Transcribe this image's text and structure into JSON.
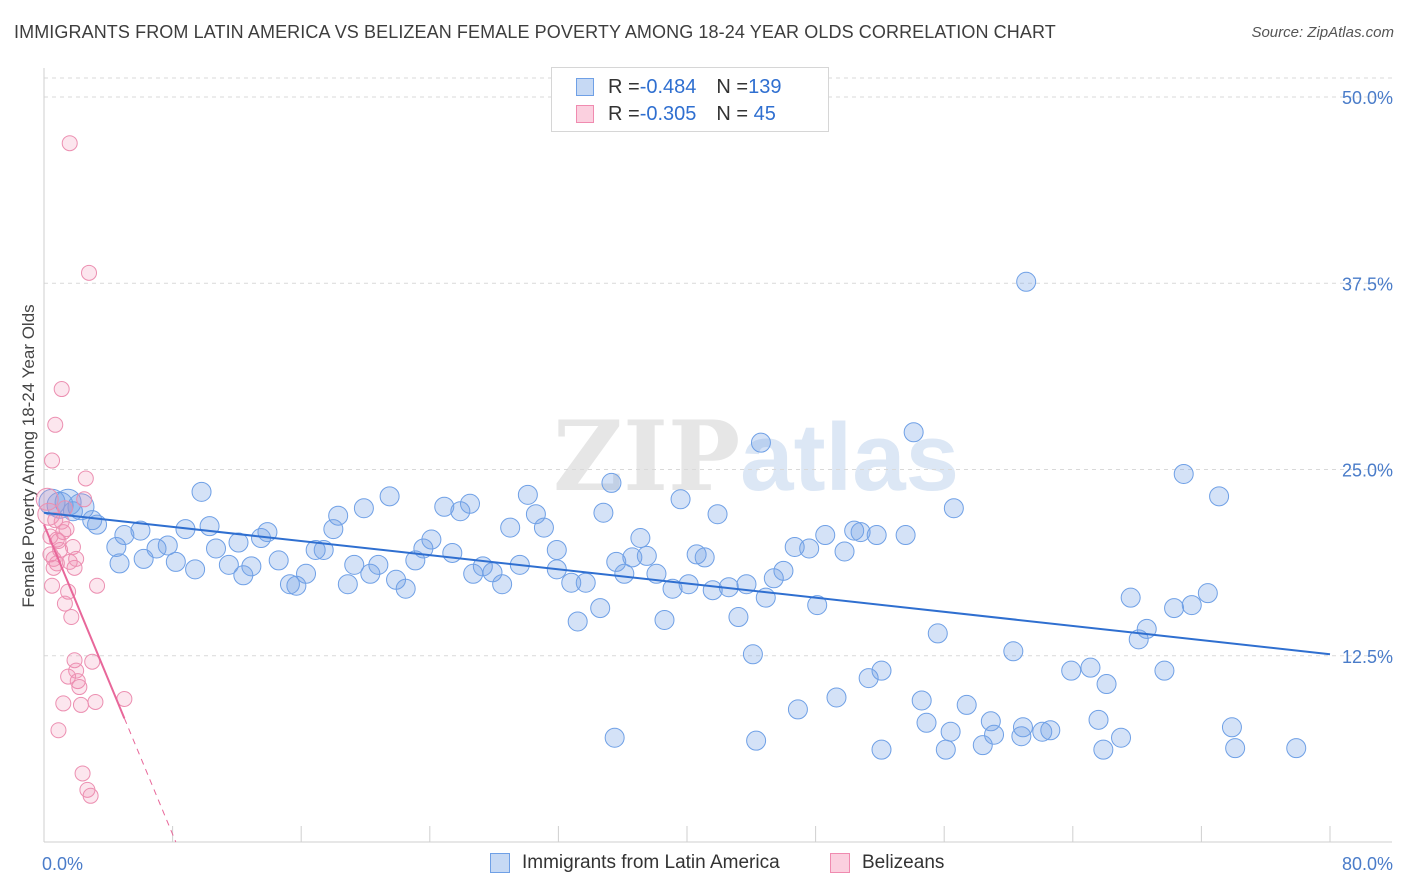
{
  "title": "IMMIGRANTS FROM LATIN AMERICA VS BELIZEAN FEMALE POVERTY AMONG 18-24 YEAR OLDS CORRELATION CHART",
  "source": "Source: ZipAtlas.com",
  "watermark": {
    "zip": "ZIP",
    "atlas": "atlas"
  },
  "legend": {
    "rows": [
      {
        "r_label": "R = ",
        "r_value": "-0.484",
        "n_label": "N = ",
        "n_value": "139",
        "color": "#6fa0e6"
      },
      {
        "r_label": "R = ",
        "r_value": "-0.305",
        "n_label": "N = ",
        "n_value": " 45",
        "color": "#f08bb0"
      }
    ]
  },
  "bottom_legend": {
    "series1": "Immigrants from Latin America",
    "series2": "Belizeans"
  },
  "chart_data": {
    "type": "scatter",
    "xlabel": "",
    "ylabel": "Female Poverty Among 18-24 Year Olds",
    "xlim": [
      0,
      80
    ],
    "ylim": [
      0,
      50
    ],
    "x_tick_labels": [
      {
        "value": 0,
        "label": "0.0%"
      },
      {
        "value": 80,
        "label": "80.0%"
      }
    ],
    "y_ticks": [
      {
        "value": 12.5,
        "label": "12.5%"
      },
      {
        "value": 25,
        "label": "25.0%"
      },
      {
        "value": 37.5,
        "label": "37.5%"
      },
      {
        "value": 50,
        "label": "50.0%"
      }
    ],
    "x_minor_ticks": [
      8,
      16,
      24,
      32,
      40,
      48,
      56,
      64,
      72,
      80
    ],
    "grid": true,
    "series": [
      {
        "name": "Immigrants from Latin America",
        "color": "#6fa0e6",
        "trend": {
          "x": [
            0,
            80
          ],
          "y": [
            22.1,
            12.6
          ]
        },
        "points": [
          [
            0.5,
            22.8
          ],
          [
            1.0,
            22.6
          ],
          [
            1.5,
            22.8
          ],
          [
            2.3,
            22.5
          ],
          [
            1.8,
            22.2
          ],
          [
            3.0,
            21.6
          ],
          [
            3.3,
            21.3
          ],
          [
            5.0,
            20.6
          ],
          [
            4.5,
            19.8
          ],
          [
            4.7,
            18.7
          ],
          [
            6.0,
            20.9
          ],
          [
            6.2,
            19.0
          ],
          [
            7.0,
            19.7
          ],
          [
            7.7,
            19.9
          ],
          [
            8.2,
            18.8
          ],
          [
            8.8,
            21.0
          ],
          [
            9.4,
            18.3
          ],
          [
            9.8,
            23.5
          ],
          [
            10.3,
            21.2
          ],
          [
            10.7,
            19.7
          ],
          [
            11.5,
            18.6
          ],
          [
            12.1,
            20.1
          ],
          [
            12.4,
            17.9
          ],
          [
            12.9,
            18.5
          ],
          [
            13.5,
            20.4
          ],
          [
            13.9,
            20.8
          ],
          [
            14.6,
            18.9
          ],
          [
            15.3,
            17.3
          ],
          [
            15.7,
            17.2
          ],
          [
            16.3,
            18.0
          ],
          [
            16.9,
            19.6
          ],
          [
            17.4,
            19.6
          ],
          [
            18.0,
            21.0
          ],
          [
            18.3,
            21.9
          ],
          [
            18.9,
            17.3
          ],
          [
            19.3,
            18.6
          ],
          [
            19.9,
            22.4
          ],
          [
            20.3,
            18.0
          ],
          [
            20.8,
            18.6
          ],
          [
            21.5,
            23.2
          ],
          [
            21.9,
            17.6
          ],
          [
            22.5,
            17.0
          ],
          [
            23.1,
            18.9
          ],
          [
            23.6,
            19.7
          ],
          [
            24.1,
            20.3
          ],
          [
            24.9,
            22.5
          ],
          [
            25.4,
            19.4
          ],
          [
            25.9,
            22.2
          ],
          [
            26.5,
            22.7
          ],
          [
            26.7,
            18.0
          ],
          [
            27.3,
            18.5
          ],
          [
            27.9,
            18.1
          ],
          [
            28.5,
            17.3
          ],
          [
            29.0,
            21.1
          ],
          [
            29.6,
            18.6
          ],
          [
            30.1,
            23.3
          ],
          [
            30.6,
            22.0
          ],
          [
            31.1,
            21.1
          ],
          [
            31.9,
            19.6
          ],
          [
            31.9,
            18.3
          ],
          [
            32.8,
            17.4
          ],
          [
            33.2,
            14.8
          ],
          [
            33.7,
            17.4
          ],
          [
            34.6,
            15.7
          ],
          [
            34.8,
            22.1
          ],
          [
            35.3,
            24.1
          ],
          [
            35.6,
            18.8
          ],
          [
            36.1,
            18.0
          ],
          [
            36.6,
            19.1
          ],
          [
            37.1,
            20.4
          ],
          [
            37.5,
            19.2
          ],
          [
            38.1,
            18.0
          ],
          [
            38.6,
            14.9
          ],
          [
            39.1,
            17.0
          ],
          [
            39.6,
            23.0
          ],
          [
            40.1,
            17.3
          ],
          [
            40.6,
            19.3
          ],
          [
            41.1,
            19.1
          ],
          [
            41.6,
            16.9
          ],
          [
            41.9,
            22.0
          ],
          [
            42.6,
            17.1
          ],
          [
            43.2,
            15.1
          ],
          [
            43.7,
            17.3
          ],
          [
            44.1,
            12.6
          ],
          [
            44.6,
            26.8
          ],
          [
            44.9,
            16.4
          ],
          [
            45.4,
            17.7
          ],
          [
            46.0,
            18.2
          ],
          [
            46.7,
            19.8
          ],
          [
            46.9,
            8.9
          ],
          [
            47.6,
            19.7
          ],
          [
            48.1,
            15.9
          ],
          [
            48.6,
            20.6
          ],
          [
            49.3,
            9.7
          ],
          [
            49.8,
            19.5
          ],
          [
            50.4,
            20.9
          ],
          [
            50.8,
            20.8
          ],
          [
            51.3,
            11.0
          ],
          [
            51.8,
            20.6
          ],
          [
            52.1,
            11.5
          ],
          [
            53.6,
            20.6
          ],
          [
            54.1,
            27.5
          ],
          [
            54.6,
            9.5
          ],
          [
            54.9,
            8.0
          ],
          [
            55.6,
            14.0
          ],
          [
            56.4,
            7.4
          ],
          [
            56.6,
            22.4
          ],
          [
            57.4,
            9.2
          ],
          [
            58.9,
            8.1
          ],
          [
            59.1,
            7.2
          ],
          [
            60.3,
            12.8
          ],
          [
            60.8,
            7.1
          ],
          [
            60.9,
            7.7
          ],
          [
            62.1,
            7.4
          ],
          [
            62.6,
            7.5
          ],
          [
            63.9,
            11.5
          ],
          [
            65.1,
            11.7
          ],
          [
            65.6,
            8.2
          ],
          [
            66.1,
            10.6
          ],
          [
            67.6,
            16.4
          ],
          [
            68.1,
            13.6
          ],
          [
            68.6,
            14.3
          ],
          [
            69.7,
            11.5
          ],
          [
            70.9,
            24.7
          ],
          [
            71.4,
            15.9
          ],
          [
            72.4,
            16.7
          ],
          [
            73.1,
            23.2
          ],
          [
            73.9,
            7.7
          ],
          [
            77.9,
            6.3
          ],
          [
            35.5,
            7.0
          ],
          [
            61.1,
            37.6
          ],
          [
            56.1,
            6.2
          ],
          [
            70.3,
            15.7
          ],
          [
            74.1,
            6.3
          ],
          [
            52.1,
            6.2
          ],
          [
            44.3,
            6.8
          ],
          [
            65.9,
            6.2
          ],
          [
            58.4,
            6.5
          ],
          [
            67.0,
            7.0
          ]
        ]
      },
      {
        "name": "Belizeans",
        "color": "#f08bb0",
        "trend": {
          "x": [
            0,
            5
          ],
          "y": [
            21.3,
            8.3
          ]
        },
        "trend_dashed": {
          "x": [
            5,
            8.2
          ],
          "y": [
            8.3,
            0
          ]
        },
        "points": [
          [
            0.2,
            23.0
          ],
          [
            0.3,
            22.0
          ],
          [
            0.4,
            19.3
          ],
          [
            0.5,
            17.2
          ],
          [
            0.6,
            19.0
          ],
          [
            0.7,
            21.6
          ],
          [
            0.8,
            18.7
          ],
          [
            0.9,
            20.2
          ],
          [
            1.0,
            19.6
          ],
          [
            1.1,
            21.5
          ],
          [
            1.2,
            20.8
          ],
          [
            1.3,
            22.4
          ],
          [
            1.4,
            21.0
          ],
          [
            1.5,
            16.8
          ],
          [
            1.6,
            18.8
          ],
          [
            1.7,
            15.1
          ],
          [
            1.8,
            19.8
          ],
          [
            1.9,
            12.2
          ],
          [
            2.0,
            11.5
          ],
          [
            2.1,
            10.8
          ],
          [
            2.2,
            10.4
          ],
          [
            2.3,
            9.2
          ],
          [
            2.4,
            4.6
          ],
          [
            2.5,
            23.0
          ],
          [
            2.6,
            24.4
          ],
          [
            2.7,
            3.5
          ],
          [
            2.8,
            38.2
          ],
          [
            2.9,
            3.1
          ],
          [
            3.0,
            12.1
          ],
          [
            3.2,
            9.4
          ],
          [
            1.6,
            46.9
          ],
          [
            1.1,
            30.4
          ],
          [
            0.7,
            28.0
          ],
          [
            0.5,
            25.6
          ],
          [
            3.3,
            17.2
          ],
          [
            5.0,
            9.6
          ],
          [
            1.5,
            11.1
          ],
          [
            0.9,
            7.5
          ],
          [
            1.2,
            9.3
          ],
          [
            1.9,
            18.4
          ],
          [
            0.4,
            20.5
          ],
          [
            0.8,
            20.3
          ],
          [
            1.3,
            16.0
          ],
          [
            2.0,
            19.0
          ],
          [
            0.6,
            18.4
          ]
        ]
      }
    ]
  }
}
